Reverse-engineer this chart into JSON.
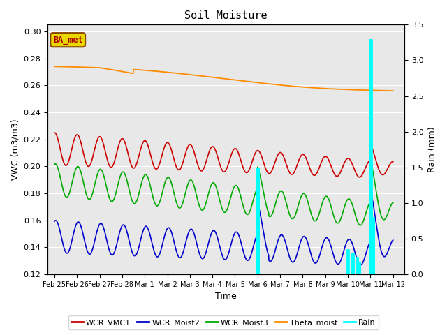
{
  "title": "Soil Moisture",
  "xlabel": "Time",
  "ylabel_left": "VWC (m3/m3)",
  "ylabel_right": "Rain (mm)",
  "xlim_days": [
    -0.3,
    15.5
  ],
  "ylim_left": [
    0.12,
    0.305
  ],
  "ylim_right": [
    0.0,
    3.5
  ],
  "fig_bg_color": "#ffffff",
  "plot_bg_color": "#e8e8e8",
  "annotation_box": "BA_met",
  "annotation_box_facecolor": "#e8d800",
  "annotation_box_edgecolor": "#884400",
  "annotation_text_color": "#aa0000",
  "x_tick_labels": [
    "Feb 25",
    "Feb 26",
    "Feb 27",
    "Feb 28",
    "Mar 1",
    "Mar 2",
    "Mar 3",
    "Mar 4",
    "Mar 5",
    "Mar 6",
    "Mar 7",
    "Mar 8",
    "Mar 9",
    "Mar 10",
    "Mar 11",
    "Mar 12"
  ],
  "colors": {
    "WCR_VMC1": "#cc0000",
    "WCR_Moist2": "#0000cc",
    "WCR_Moist3": "#00aa00",
    "Theta_moist": "#ff8c00",
    "Rain": "#00ffff"
  },
  "legend_labels": [
    "WCR_VMC1",
    "WCR_Moist2",
    "WCR_Moist3",
    "Theta_moist",
    "Rain"
  ],
  "yticks_left": [
    0.12,
    0.14,
    0.16,
    0.18,
    0.2,
    0.22,
    0.24,
    0.26,
    0.28,
    0.3
  ],
  "yticks_right": [
    0.0,
    0.5,
    1.0,
    1.5,
    2.0,
    2.5,
    3.0,
    3.5
  ]
}
